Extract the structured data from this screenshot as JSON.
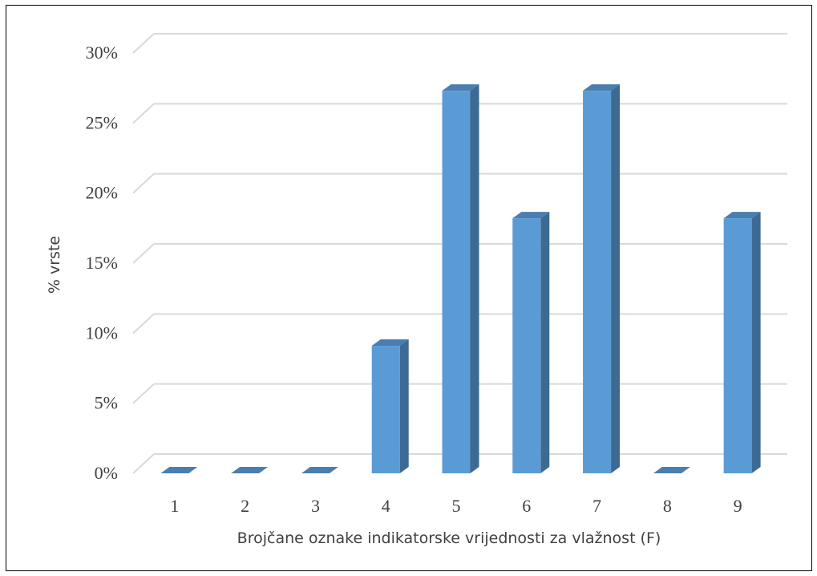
{
  "chart_data": {
    "type": "bar",
    "title": "",
    "xlabel": "Brojčane oznake indikatorske vrijednosti za vlažnost (F)",
    "ylabel": "% vrste",
    "categories": [
      "1",
      "2",
      "3",
      "4",
      "5",
      "6",
      "7",
      "8",
      "9"
    ],
    "values": [
      0,
      0,
      0,
      9.1,
      27.3,
      18.2,
      27.3,
      0,
      18.2
    ],
    "ylim": [
      0,
      30
    ],
    "yticks": [
      0,
      5,
      10,
      15,
      20,
      25,
      30
    ],
    "ytick_labels": [
      "0%",
      "5%",
      "10%",
      "15%",
      "20%",
      "25%",
      "30%"
    ],
    "grid": true,
    "legend": "none",
    "style": "3d-column",
    "colors": {
      "bar_front": "#5b9bd5",
      "bar_side": "#3d6a93",
      "bar_top": "#4a7eb0",
      "gridline": "#d9d9d9",
      "text": "#404040"
    }
  }
}
